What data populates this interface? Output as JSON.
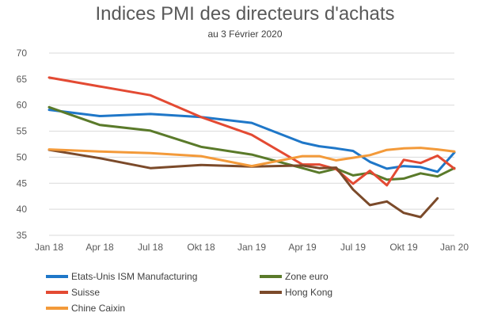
{
  "chart_data": {
    "type": "line",
    "title": "Indices PMI des directeurs d'achats",
    "subtitle": "au 3 Février 2020",
    "xlabel": "",
    "ylabel": "",
    "ylim": [
      35,
      70
    ],
    "yticks": [
      35,
      40,
      45,
      50,
      55,
      60,
      65,
      70
    ],
    "x_tick_labels": [
      "Jan 18",
      "Apr 18",
      "Jul 18",
      "Okt 18",
      "Jan 19",
      "Apr 19",
      "Jul 19",
      "Okt 19",
      "Jan 20"
    ],
    "x_months": [
      0,
      3,
      6,
      9,
      12,
      15,
      18,
      21,
      24
    ],
    "legend_position": "bottom",
    "grid": "horizontal",
    "series": [
      {
        "name": "Etats-Unis ISM Manufacturing",
        "color": "#1f77c8",
        "points": [
          [
            0,
            59.1
          ],
          [
            3,
            57.9
          ],
          [
            6,
            58.3
          ],
          [
            9,
            57.7
          ],
          [
            12,
            56.6
          ],
          [
            15,
            52.8
          ],
          [
            16,
            52.1
          ],
          [
            17,
            51.7
          ],
          [
            18,
            51.2
          ],
          [
            19,
            49.1
          ],
          [
            20,
            47.8
          ],
          [
            21,
            48.3
          ],
          [
            22,
            48.1
          ],
          [
            23,
            47.2
          ],
          [
            24,
            50.9
          ]
        ]
      },
      {
        "name": "Zone euro",
        "color": "#5a7a2a",
        "points": [
          [
            0,
            59.6
          ],
          [
            3,
            56.2
          ],
          [
            6,
            55.1
          ],
          [
            9,
            52.0
          ],
          [
            12,
            50.5
          ],
          [
            15,
            47.9
          ],
          [
            16,
            47.0
          ],
          [
            17,
            47.8
          ],
          [
            18,
            46.5
          ],
          [
            19,
            47.0
          ],
          [
            20,
            45.7
          ],
          [
            21,
            45.9
          ],
          [
            22,
            46.9
          ],
          [
            23,
            46.3
          ],
          [
            24,
            47.9
          ]
        ]
      },
      {
        "name": "Suisse",
        "color": "#e34a33",
        "points": [
          [
            0,
            65.3
          ],
          [
            3,
            63.6
          ],
          [
            6,
            61.9
          ],
          [
            9,
            57.7
          ],
          [
            12,
            54.3
          ],
          [
            15,
            48.6
          ],
          [
            16,
            48.6
          ],
          [
            17,
            47.7
          ],
          [
            18,
            44.9
          ],
          [
            19,
            47.4
          ],
          [
            20,
            44.6
          ],
          [
            21,
            49.5
          ],
          [
            22,
            48.9
          ],
          [
            23,
            50.3
          ],
          [
            24,
            47.8
          ]
        ]
      },
      {
        "name": "Hong Kong",
        "color": "#7b4a2a",
        "points": [
          [
            0,
            51.4
          ],
          [
            3,
            49.8
          ],
          [
            6,
            47.9
          ],
          [
            9,
            48.5
          ],
          [
            12,
            48.2
          ],
          [
            15,
            48.4
          ],
          [
            16,
            47.9
          ],
          [
            17,
            48.0
          ],
          [
            18,
            43.8
          ],
          [
            19,
            40.8
          ],
          [
            20,
            41.5
          ],
          [
            21,
            39.3
          ],
          [
            22,
            38.5
          ],
          [
            23,
            42.1
          ]
        ]
      },
      {
        "name": "Chine Caixin",
        "color": "#f39a3a",
        "points": [
          [
            0,
            51.5
          ],
          [
            3,
            51.1
          ],
          [
            6,
            50.8
          ],
          [
            9,
            50.2
          ],
          [
            12,
            48.3
          ],
          [
            15,
            50.2
          ],
          [
            16,
            50.2
          ],
          [
            17,
            49.4
          ],
          [
            18,
            49.9
          ],
          [
            19,
            50.4
          ],
          [
            20,
            51.4
          ],
          [
            21,
            51.7
          ],
          [
            22,
            51.8
          ],
          [
            23,
            51.5
          ],
          [
            24,
            51.1
          ]
        ]
      }
    ]
  }
}
